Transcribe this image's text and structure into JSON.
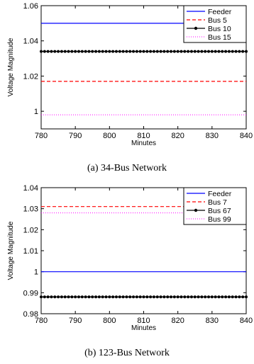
{
  "chart_data": [
    {
      "type": "line",
      "caption": "(a) 34-Bus Network",
      "xlabel": "Minutes",
      "ylabel": "Voltage Magnitude",
      "xlim": [
        780,
        840
      ],
      "ylim": [
        0.99,
        1.06
      ],
      "xticks": [
        780,
        790,
        800,
        810,
        820,
        830,
        840
      ],
      "yticks": [
        1,
        1.02,
        1.04,
        1.06
      ],
      "legend_position": "top-right",
      "series": [
        {
          "name": "Feeder",
          "value": 1.05,
          "color": "#0000ff",
          "style": "solid"
        },
        {
          "name": "Bus 5",
          "value": 1.017,
          "color": "#ff0000",
          "style": "dashed"
        },
        {
          "name": "Bus 10",
          "value": 1.034,
          "color": "#000000",
          "style": "solid-markers"
        },
        {
          "name": "Bus 15",
          "value": 0.998,
          "color": "#ff00ff",
          "style": "dotted"
        }
      ]
    },
    {
      "type": "line",
      "caption": "(b) 123-Bus Network",
      "xlabel": "Minutes",
      "ylabel": "Voltage Magnitude",
      "xlim": [
        780,
        840
      ],
      "ylim": [
        0.98,
        1.04
      ],
      "xticks": [
        780,
        790,
        800,
        810,
        820,
        830,
        840
      ],
      "yticks": [
        0.98,
        0.99,
        1,
        1.01,
        1.02,
        1.03,
        1.04
      ],
      "legend_position": "top-right",
      "series": [
        {
          "name": "Feeder",
          "value": 1.0,
          "color": "#0000ff",
          "style": "solid"
        },
        {
          "name": "Bus 7",
          "value": 1.031,
          "color": "#ff0000",
          "style": "dashed"
        },
        {
          "name": "Bus 67",
          "value": 0.988,
          "color": "#000000",
          "style": "solid-markers"
        },
        {
          "name": "Bus 99",
          "value": 1.028,
          "color": "#ff00ff",
          "style": "dotted"
        }
      ]
    }
  ]
}
